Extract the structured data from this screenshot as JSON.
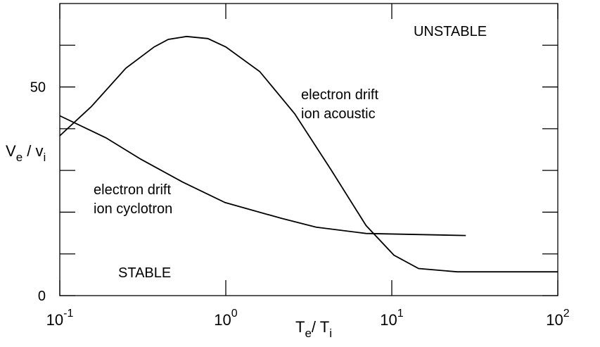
{
  "chart_data": {
    "type": "line",
    "xlog": true,
    "xlim": [
      0.1,
      100
    ],
    "ylim": [
      0,
      70
    ],
    "xticks": [
      {
        "value": 0.1,
        "label": "10",
        "exponent": "-1"
      },
      {
        "value": 1,
        "label": "10",
        "exponent": "0"
      },
      {
        "value": 10,
        "label": "10",
        "exponent": "1"
      },
      {
        "value": 100,
        "label": "10",
        "exponent": "2"
      }
    ],
    "yticks": [
      0,
      50
    ],
    "yminorticks": [
      10,
      20,
      30,
      40,
      60
    ],
    "xlabel": [
      "T",
      "e",
      "/ T",
      "i"
    ],
    "ylabel": [
      "V",
      "e",
      " / v",
      "i"
    ],
    "color": "#000000",
    "series": [
      {
        "x": [
          0.1,
          0.155,
          0.25,
          0.37,
          0.45,
          0.58,
          0.78,
          1.0,
          1.6,
          2.6,
          4.3,
          7.0,
          10.3,
          14.5,
          24.8,
          100
        ],
        "values": [
          38.3,
          45.3,
          54.5,
          59.6,
          61.4,
          62.1,
          61.6,
          59.6,
          53.7,
          43.6,
          30.2,
          16.8,
          9.7,
          6.5,
          5.7,
          5.7
        ]
      },
      {
        "x": [
          0.1,
          0.19,
          0.307,
          0.55,
          0.99,
          2.17,
          3.5,
          7.0,
          27.9
        ],
        "values": [
          43.1,
          37.8,
          32.7,
          27.2,
          22.3,
          18.5,
          16.4,
          14.9,
          14.4
        ]
      }
    ],
    "annotations": [
      "UNSTABLE",
      "electron drift",
      "ion acoustic",
      "electron drift",
      "ion cyclotron",
      "STABLE"
    ]
  }
}
